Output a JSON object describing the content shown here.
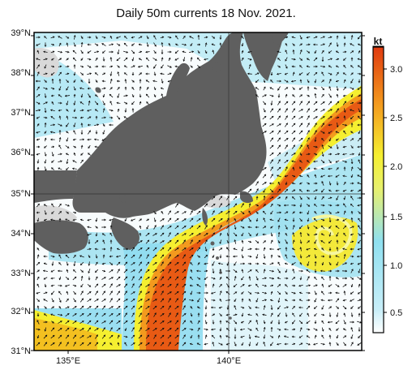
{
  "title": "Daily 50m currents 18 Nov. 2021.",
  "map": {
    "lat_labels": [
      "39°N",
      "38°N",
      "37°N",
      "36°N",
      "35°N",
      "34°N",
      "33°N",
      "32°N",
      "31°N"
    ],
    "lon_labels": [
      "135°E",
      "140°E"
    ],
    "lat_range": [
      31,
      39
    ],
    "lon_range": [
      133.8,
      144
    ],
    "gridlines": [
      {
        "lat": 35
      },
      {
        "lon": 140
      }
    ]
  },
  "colorbar": {
    "unit": "kt",
    "ticks": [
      "0.5",
      "1.0",
      "1.5",
      "2.0",
      "2.5",
      "3.0"
    ],
    "range": [
      0.3,
      3.2
    ],
    "colors": [
      "#ffffff",
      "#8fe0f0",
      "#f5ef30",
      "#f39a1e",
      "#e03a10"
    ]
  },
  "colors": {
    "land": "#5f5f5f",
    "shelf": "#d9d9d9",
    "frame": "#000000"
  }
}
